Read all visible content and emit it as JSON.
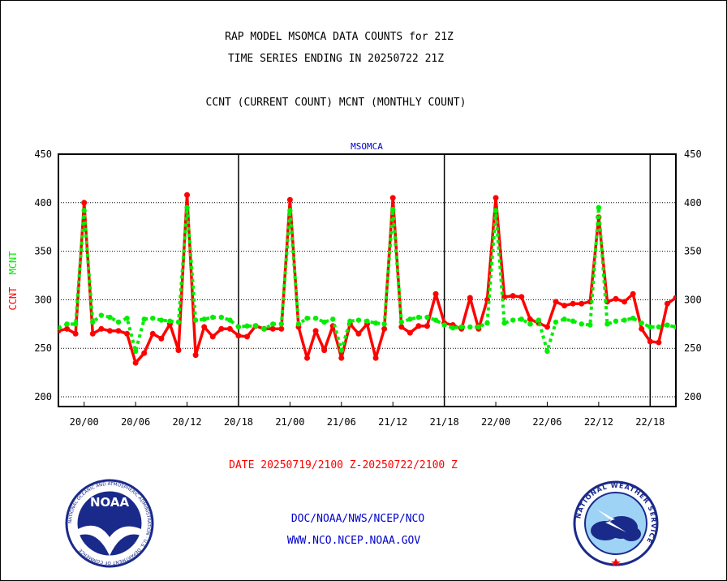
{
  "header": {
    "title_line1": "RAP MODEL MSOMCA DATA COUNTS for 21Z",
    "title_line2": "TIME SERIES ENDING IN 20250722 21Z",
    "title_line3": "CCNT (CURRENT COUNT) MCNT (MONTHLY COUNT)"
  },
  "footer": {
    "date_range": "DATE 20250719/2100 Z-20250722/2100 Z",
    "org_path": "DOC/NOAA/NWS/NCEP/NCO",
    "website": "WWW.NCO.NCEP.NOAA.GOV"
  },
  "logos": {
    "noaa_text": "NOAA",
    "noaa_ring": "NATIONAL OCEANIC AND ATMOSPHERIC ADMINISTRATION · U.S. DEPARTMENT OF COMMERCE",
    "nws_ring": "NATIONAL WEATHER SERVICE"
  },
  "colors": {
    "ccnt": "#ff0000",
    "mcnt": "#00ee00",
    "station_label": "#0000cc",
    "text_blue": "#0000cc"
  },
  "chart_data": {
    "type": "line",
    "station_label": "MSOMCA",
    "ylabel_parts": [
      {
        "text": "CCNT",
        "series": "CCNT"
      },
      {
        "text": "MCNT",
        "series": "MCNT"
      }
    ],
    "ylim": [
      190,
      450
    ],
    "yticks": [
      200,
      250,
      300,
      350,
      400,
      450
    ],
    "xlim": [
      0,
      72
    ],
    "grid": "horizontal dotted",
    "day_separators_x": [
      21,
      45,
      69
    ],
    "xticks": [
      {
        "x": 3,
        "label": "20/00"
      },
      {
        "x": 9,
        "label": "20/06"
      },
      {
        "x": 15,
        "label": "20/12"
      },
      {
        "x": 21,
        "label": "20/18"
      },
      {
        "x": 27,
        "label": "21/00"
      },
      {
        "x": 33,
        "label": "21/06"
      },
      {
        "x": 39,
        "label": "21/12"
      },
      {
        "x": 45,
        "label": "21/18"
      },
      {
        "x": 51,
        "label": "22/00"
      },
      {
        "x": 57,
        "label": "22/06"
      },
      {
        "x": 63,
        "label": "22/12"
      },
      {
        "x": 69,
        "label": "22/18"
      }
    ],
    "x_unit": "hours since 19/21Z",
    "series": [
      {
        "name": "CCNT",
        "values": [
          268,
          270,
          265,
          400,
          265,
          270,
          268,
          268,
          265,
          235,
          245,
          265,
          260,
          275,
          248,
          408,
          243,
          272,
          262,
          270,
          270,
          263,
          262,
          273,
          270,
          270,
          270,
          403,
          272,
          240,
          268,
          248,
          273,
          240,
          275,
          265,
          275,
          240,
          270,
          405,
          272,
          266,
          273,
          273,
          306,
          276,
          274,
          270,
          302,
          270,
          300,
          405,
          303,
          304,
          303,
          280,
          276,
          272,
          298,
          294,
          296,
          296,
          298,
          385,
          298,
          301,
          298,
          306,
          270,
          257,
          256,
          296,
          302
        ]
      },
      {
        "name": "MCNT",
        "values": [
          271,
          275,
          275,
          392,
          277,
          284,
          282,
          277,
          281,
          247,
          280,
          281,
          279,
          278,
          277,
          395,
          279,
          280,
          282,
          282,
          279,
          272,
          273,
          273,
          270,
          275,
          275,
          392,
          275,
          281,
          281,
          277,
          280,
          248,
          278,
          279,
          278,
          276,
          275,
          393,
          277,
          280,
          282,
          282,
          279,
          274,
          271,
          272,
          272,
          272,
          276,
          392,
          276,
          279,
          280,
          275,
          279,
          247,
          277,
          280,
          278,
          275,
          274,
          395,
          275,
          278,
          279,
          281,
          276,
          272,
          272,
          274,
          272
        ]
      }
    ]
  }
}
